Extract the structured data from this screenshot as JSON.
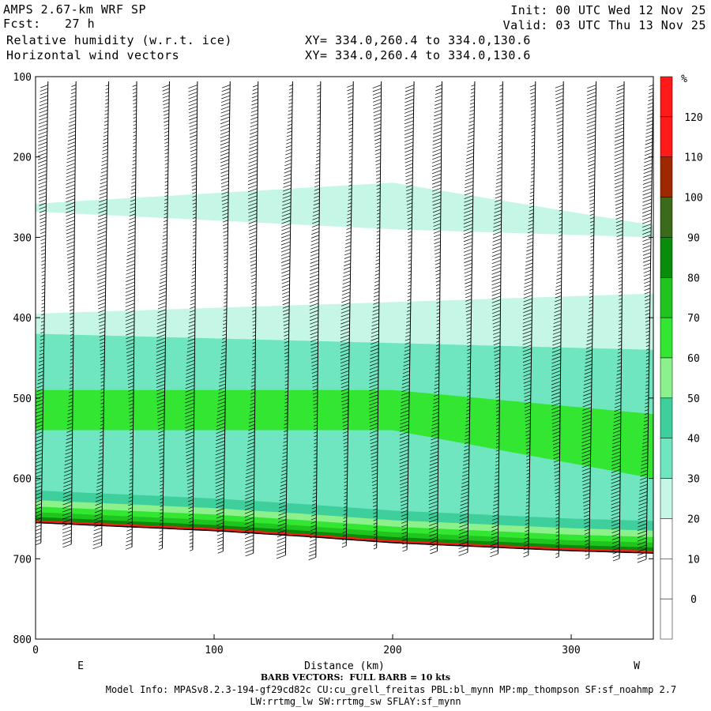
{
  "header": {
    "model": "AMPS 2.67-km WRF SP",
    "fcst_label": "Fcst:",
    "fcst_value": "27 h",
    "field1": "Relative humidity (w.r.t. ice)",
    "field2": "Horizontal wind vectors",
    "init": "Init: 00 UTC Wed 12 Nov 25",
    "valid": "Valid: 03 UTC Thu 13 Nov 25",
    "xy1": "XY= 334.0,260.4 to 334.0,130.6",
    "xy2": "XY= 334.0,260.4 to 334.0,130.6"
  },
  "footer": {
    "barb_note": "BARB VECTORS:  FULL BARB = 10 kts",
    "model_info_1": "Model Info: MPASv8.2.3-194-gf29cd82c CU:cu_grell_freitas PBL:bl_mynn MP:mp_thompson SF:sf_noahmp 2.7",
    "model_info_2": "LW:rrtmg_lw SW:rrtmg_sw SFLAY:sf_mynn"
  },
  "chart_data": {
    "type": "heatmap",
    "title": "Relative humidity (w.r.t. ice)",
    "overlay": "Horizontal wind vectors (barbs)",
    "xlabel": "Distance (km)",
    "ylabel": "",
    "x_end_labels": [
      "E",
      "W"
    ],
    "xlim": [
      0,
      346
    ],
    "ylim": [
      800,
      100
    ],
    "x_ticks": [
      0,
      100,
      200,
      300
    ],
    "y_ticks": [
      100,
      200,
      300,
      400,
      500,
      600,
      700,
      800
    ],
    "colorbar": {
      "unit": "%",
      "levels": [
        0,
        10,
        20,
        30,
        40,
        50,
        60,
        70,
        80,
        90,
        100,
        110,
        120
      ],
      "colors": [
        "#ffffff",
        "#ffffff",
        "#ffffff",
        "#c6f7e6",
        "#6fe5c0",
        "#3ecf9c",
        "#8cf08c",
        "#32e632",
        "#1fc41f",
        "#0a8c0a",
        "#3a6a1a",
        "#a02800",
        "#ff1a1a"
      ]
    },
    "terrain_pressure": [
      [
        0,
        655
      ],
      [
        50,
        660
      ],
      [
        100,
        665
      ],
      [
        150,
        672
      ],
      [
        200,
        680
      ],
      [
        250,
        685
      ],
      [
        300,
        690
      ],
      [
        346,
        693
      ]
    ],
    "rh_layers": [
      {
        "name": "upper_moist_band",
        "rh": 30,
        "top": [
          [
            0,
            258
          ],
          [
            200,
            232
          ],
          [
            346,
            285
          ]
        ],
        "bottom": [
          [
            0,
            268
          ],
          [
            200,
            290
          ],
          [
            346,
            300
          ]
        ]
      },
      {
        "name": "mid_moist_layer",
        "rh": 30,
        "top": [
          [
            0,
            395
          ],
          [
            346,
            370
          ]
        ],
        "bottom": [
          [
            0,
            665
          ],
          [
            346,
            690
          ]
        ]
      },
      {
        "name": "mid_moist_core",
        "rh": 40,
        "top": [
          [
            0,
            420
          ],
          [
            346,
            440
          ]
        ],
        "bottom": [
          [
            0,
            650
          ],
          [
            346,
            680
          ]
        ]
      },
      {
        "name": "mid_moist_max",
        "rh": 70,
        "top": [
          [
            200,
            490
          ],
          [
            346,
            520
          ]
        ],
        "bottom": [
          [
            200,
            540
          ],
          [
            346,
            600
          ]
        ]
      }
    ],
    "barb_columns_km": [
      3,
      20,
      37,
      54,
      71,
      88,
      105,
      122,
      140,
      157,
      174,
      191,
      208,
      225,
      242,
      259,
      276,
      293,
      310,
      327,
      342
    ]
  }
}
